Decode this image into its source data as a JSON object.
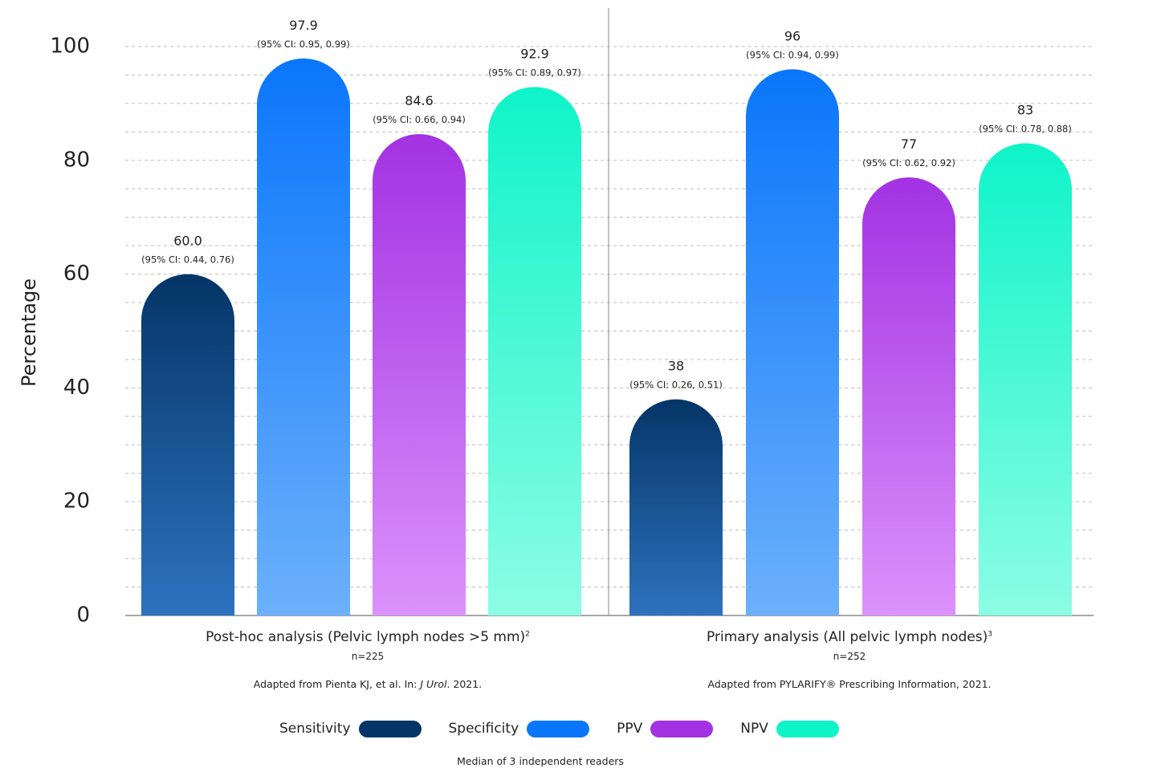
{
  "chart_data": {
    "type": "bar",
    "ylabel": "Percentage",
    "ylim": [
      0,
      100
    ],
    "yticks": [
      0,
      20,
      40,
      60,
      80,
      100
    ],
    "grid": "dashed horizontal",
    "categories": [
      {
        "title": "Post-hoc analysis (Pelvic lymph nodes >5 mm)",
        "sup": "2",
        "n": "n=225",
        "source_pre": "Adapted from Pienta KJ, et al. In: ",
        "source_journal": "J Urol",
        "source_post": ". 2021."
      },
      {
        "title": "Primary analysis (All pelvic lymph nodes)",
        "sup": "3",
        "n": "n=252",
        "source_pre": "Adapted from PYLARIFY® Prescribing Information, 2021.",
        "source_journal": "",
        "source_post": ""
      }
    ],
    "series": [
      {
        "name": "Sensitivity",
        "color_top": "#053567",
        "color_bottom": "#2d72bf",
        "values": [
          60.0,
          38
        ],
        "labels": [
          "60.0",
          "38"
        ],
        "ci": [
          "(95% CI: 0.44, 0.76)",
          "(95% CI: 0.26, 0.51)"
        ]
      },
      {
        "name": "Specificity",
        "color_top": "#0a76fb",
        "color_bottom": "#6cb0fb",
        "values": [
          97.9,
          96
        ],
        "labels": [
          "97.9",
          "96"
        ],
        "ci": [
          "(95% CI: 0.95, 0.99)",
          "(95% CI: 0.94, 0.99)"
        ]
      },
      {
        "name": "PPV",
        "color_top": "#a332e3",
        "color_bottom": "#db92fb",
        "values": [
          84.6,
          77
        ],
        "labels": [
          "84.6",
          "77"
        ],
        "ci": [
          "(95% CI: 0.66, 0.94)",
          "(95% CI: 0.62, 0.92)"
        ]
      },
      {
        "name": "NPV",
        "color_top": "#0ff4c9",
        "color_bottom": "#8cfde4",
        "values": [
          92.9,
          83
        ],
        "labels": [
          "92.9",
          "83"
        ],
        "ci": [
          "(95% CI: 0.89, 0.97)",
          "(95% CI: 0.78, 0.88)"
        ]
      }
    ],
    "legend_position": "bottom",
    "footnote": "Median of 3 independent readers"
  }
}
